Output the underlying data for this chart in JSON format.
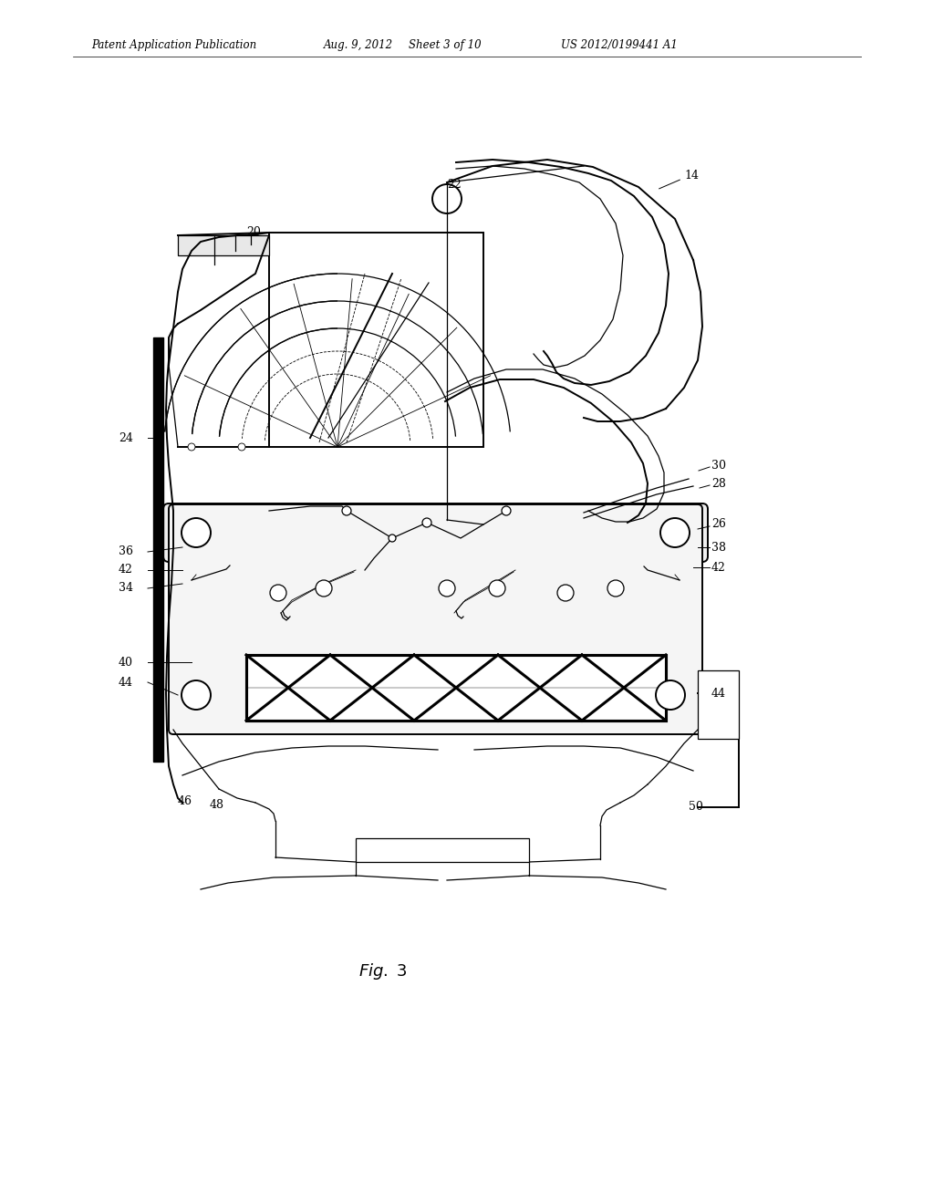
{
  "bg_color": "#ffffff",
  "line_color": "#000000",
  "header_text": "Patent Application Publication",
  "header_date": "Aug. 9, 2012",
  "header_sheet": "Sheet 3 of 10",
  "header_patent": "US 2012/0199441 A1",
  "figure_label": "Fig. 3"
}
